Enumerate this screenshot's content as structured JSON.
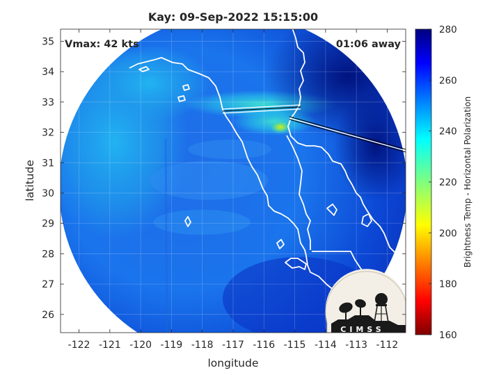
{
  "title": "Kay: 09-Sep-2022 15:15:00",
  "annotations": {
    "vmax": "Vmax: 42 kts",
    "away": "01:06 away"
  },
  "axes": {
    "xlabel": "longitude",
    "ylabel": "latitude",
    "xticks": [
      "-122",
      "-121",
      "-120",
      "-119",
      "-118",
      "-117",
      "-116",
      "-115",
      "-114",
      "-113",
      "-112"
    ],
    "yticks": [
      "35",
      "34",
      "33",
      "32",
      "31",
      "30",
      "29",
      "28",
      "27",
      "26"
    ],
    "xlim": [
      -122.6,
      -111.4
    ],
    "ylim": [
      25.4,
      35.4
    ]
  },
  "colorbar": {
    "label": "Brightness Temp - Horizontal Polarization",
    "ticks": [
      "280",
      "260",
      "240",
      "220",
      "200",
      "180",
      "160"
    ],
    "range": [
      160,
      280
    ],
    "colormap": "jet"
  },
  "logo": {
    "text": "CIMSS"
  },
  "chart_data": {
    "type": "heatmap",
    "title": "Kay: 09-Sep-2022 15:15:00",
    "xlabel": "longitude",
    "ylabel": "latitude",
    "xlim": [
      -122.6,
      -111.4
    ],
    "ylim": [
      25.4,
      35.4
    ],
    "colorbar_label": "Brightness Temp - Horizontal Polarization",
    "clim": [
      160,
      280
    ],
    "grid": true,
    "swath_center": [
      -116.85,
      30.2
    ],
    "swath_radius_deg": 5.6,
    "features": [
      {
        "name": "cold band",
        "lon": -115.1,
        "lat": 32.05,
        "value": 215
      }
    ]
  }
}
